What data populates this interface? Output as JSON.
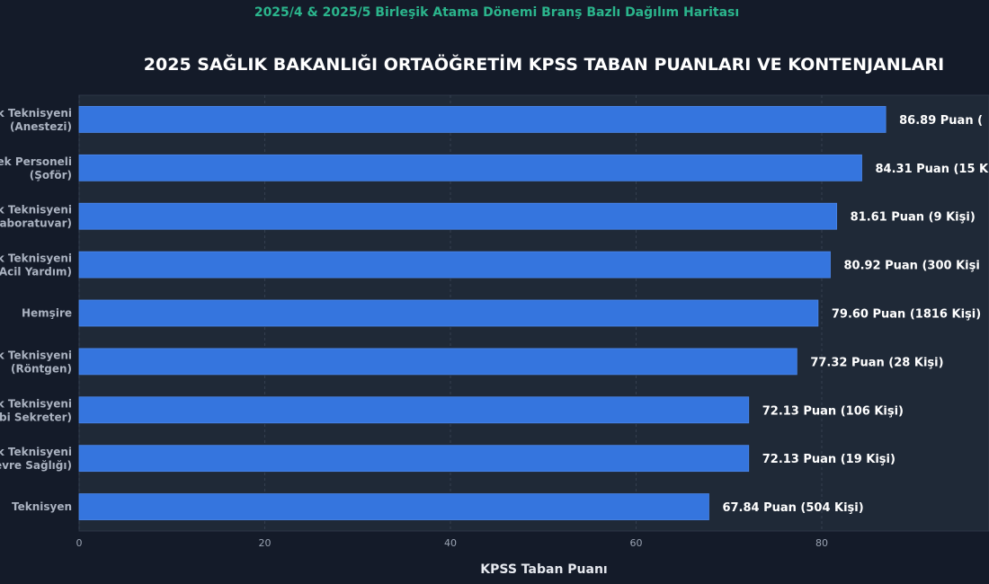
{
  "header": {
    "caption": "2025/4 & 2025/5 Birleşik Atama Dönemi Branş Bazlı Dağılım Haritası"
  },
  "colors": {
    "background": "#141b29",
    "plot_background": "#1f2937",
    "bar": "#3575de",
    "caption": "#2bb58c"
  },
  "chart_data": {
    "type": "bar",
    "orientation": "horizontal",
    "title": "2025 SAĞLIK BAKANLIĞI ORTAÖĞRETİM KPSS TABAN PUANLARI VE KONTENJANLARI",
    "xlabel": "KPSS Taban Puanı",
    "ylabel": "",
    "xlim": [
      0,
      98
    ],
    "xticks": [
      0,
      20,
      40,
      60,
      80
    ],
    "categories": [
      "k Teknisyeni\n(Anestezi)",
      "ek Personeli\n(Şoför)",
      "k Teknisyeni\naboratuvar)",
      "k Teknisyeni\nAcil Yardım)",
      "Hemşire",
      "k Teknisyeni\n(Röntgen)",
      "k Teknisyeni\nbi Sekreter)",
      "k Teknisyeni\nevre Sağlığı)",
      "Teknisyen"
    ],
    "values": [
      86.89,
      84.31,
      81.61,
      80.92,
      79.6,
      77.32,
      72.13,
      72.13,
      67.84
    ],
    "data_labels": [
      "86.89 Puan  (",
      "84.31 Puan  (15 K",
      "81.61 Puan  (9 Kişi)",
      "80.92 Puan  (300 Kişi",
      "79.60 Puan  (1816 Kişi)",
      "77.32 Puan  (28 Kişi)",
      "72.13 Puan  (106 Kişi)",
      "72.13 Puan  (19 Kişi)",
      "67.84 Puan  (504 Kişi)"
    ],
    "grid": true,
    "legend": "none"
  }
}
